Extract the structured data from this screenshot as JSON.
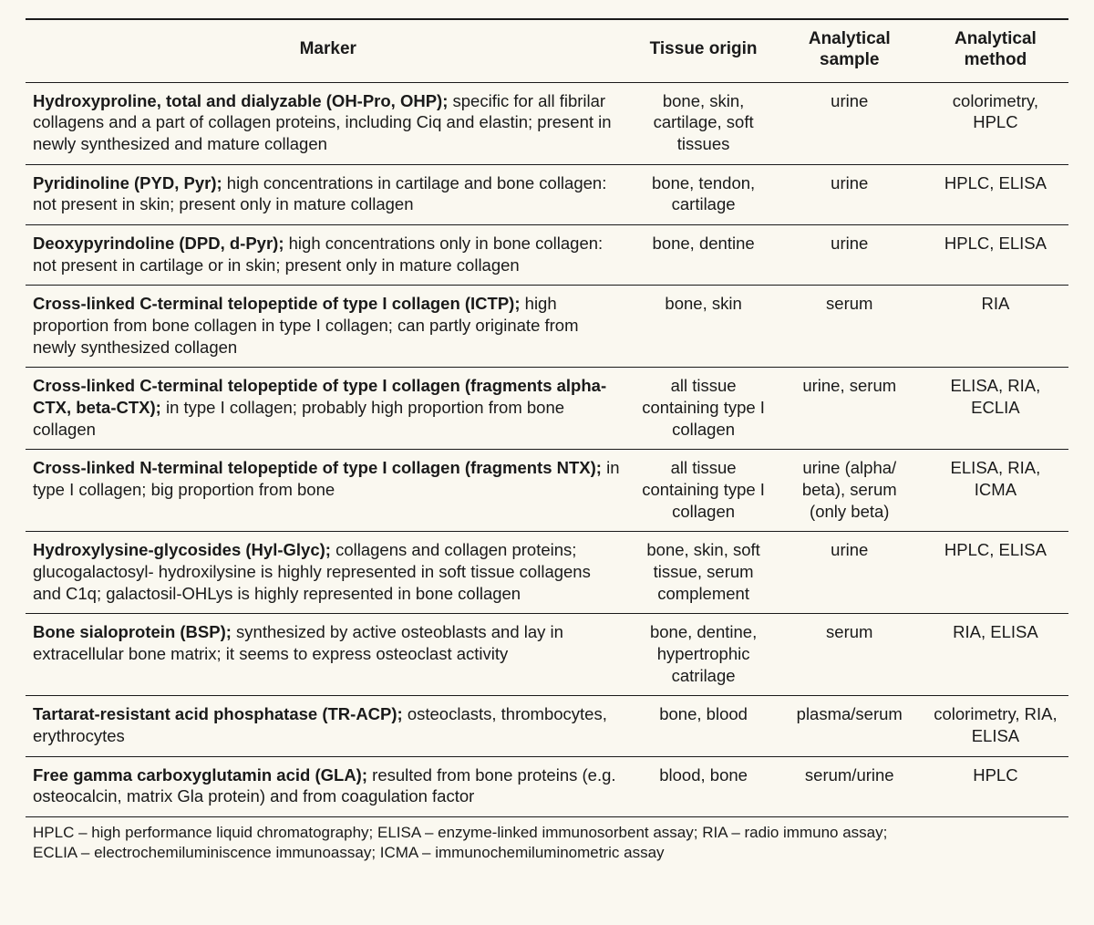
{
  "table": {
    "background_color": "#faf8f0",
    "text_color": "#1a1a1a",
    "border_color": "#1a1a1a",
    "header_fontsize": 19,
    "body_fontsize": 18.5,
    "footnote_fontsize": 17,
    "column_widths_pct": [
      58,
      14,
      14,
      14
    ],
    "columns": [
      "Marker",
      "Tissue origin",
      "Analytical sample",
      "Analytical method"
    ],
    "rows": [
      {
        "marker_title": "Hydroxyproline, total and dialyzable (OH-Pro, OHP);",
        "marker_desc": "specific for all fibrilar collagens and a part of collagen proteins, including Ciq and elastin; present in newly synthesized and mature collagen",
        "tissue": "bone, skin, cartilage, soft tissues",
        "sample": "urine",
        "method": "colorimetry, HPLC"
      },
      {
        "marker_title": "Pyridinoline (PYD, Pyr);",
        "marker_desc": "high concentrations in cartilage and bone collagen: not present in skin; present only in mature collagen",
        "tissue": "bone, tendon, cartilage",
        "sample": "urine",
        "method": "HPLC, ELISA"
      },
      {
        "marker_title": "Deoxypyrindoline (DPD, d-Pyr);",
        "marker_desc": "high concentrations only in bone collagen: not present in cartilage or in skin; present only in mature collagen",
        "tissue": "bone, dentine",
        "sample": "urine",
        "method": "HPLC, ELISA"
      },
      {
        "marker_title": "Cross-linked C-terminal telopeptide of type I collagen (ICTP);",
        "marker_desc": "high proportion from bone collagen in type I collagen; can partly originate from newly synthesized collagen",
        "tissue": "bone, skin",
        "sample": "serum",
        "method": "RIA"
      },
      {
        "marker_title": "Cross-linked C-terminal telopeptide of type I collagen (fragments alpha-CTX, beta-CTX);",
        "marker_desc": "in type I collagen; probably high proportion from bone collagen",
        "tissue": "all tissue containing type I collagen",
        "sample": "urine, serum",
        "method": "ELISA, RIA, ECLIA"
      },
      {
        "marker_title": "Cross-linked N-terminal telopeptide of type I collagen (fragments NTX);",
        "marker_desc": " in type I collagen; big proportion from bone",
        "tissue": "all tissue containing type I collagen",
        "sample": "urine (alpha/ beta), serum (only beta)",
        "method": "ELISA, RIA, ICMA"
      },
      {
        "marker_title": "Hydroxylysine-glycosides (Hyl-Glyc);",
        "marker_desc": "collagens and collagen proteins; glucogalactosyl- hydroxilysine is highly represented in soft tissue collagens and C1q; galactosil-OHLys is highly represented in bone collagen",
        "tissue": "bone, skin, soft tissue, serum complement",
        "sample": "urine",
        "method": "HPLC, ELISA"
      },
      {
        "marker_title": "Bone sialoprotein (BSP);",
        "marker_desc": "synthesized by active osteoblasts and lay in extracellular bone matrix; it seems to express osteoclast activity",
        "tissue": "bone, dentine, hypertrophic catrilage",
        "sample": "serum",
        "method": "RIA, ELISA"
      },
      {
        "marker_title": "Tartarat-resistant acid phosphatase (TR-ACP);",
        "marker_desc": "osteoclasts, thrombocytes, erythrocytes",
        "tissue": "bone, blood",
        "sample": "plasma/serum",
        "method": "colorimetry, RIA, ELISA"
      },
      {
        "marker_title": "Free gamma carboxyglutamin acid (GLA);",
        "marker_desc": "resulted from bone proteins (e.g. osteocalcin, matrix Gla protein) and from coagulation factor",
        "tissue": "blood, bone",
        "sample": "serum/urine",
        "method": "HPLC"
      }
    ],
    "footnote_line1": "HPLC – high performance liquid chromatography; ELISA – enzyme-linked immunosorbent assay; RIA – radio immuno assay;",
    "footnote_line2": "ECLIA – electrochemiluminiscence immunoassay; ICMA – immunochemiluminometric assay"
  }
}
